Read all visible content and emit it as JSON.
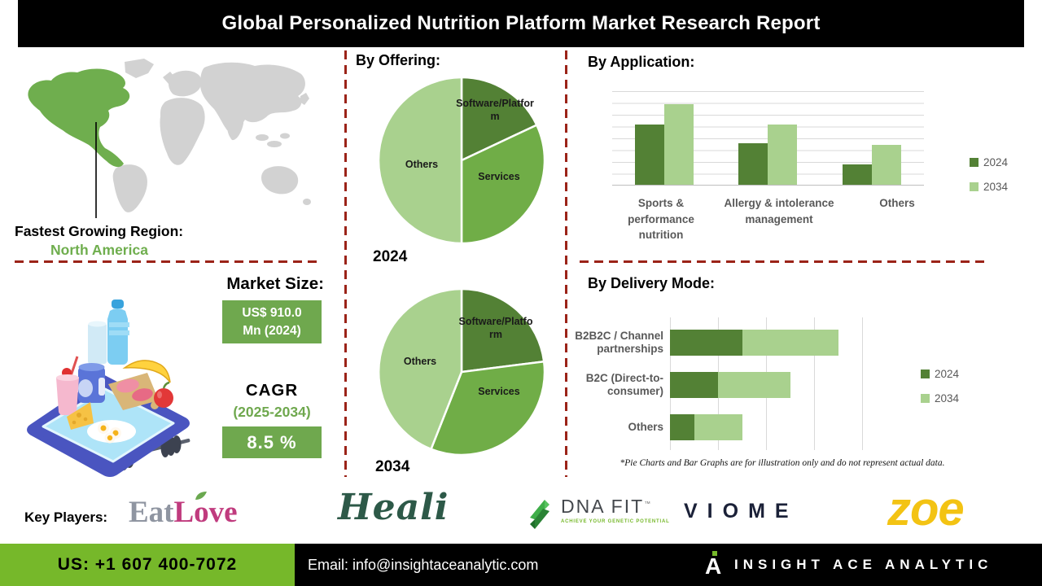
{
  "title": "Global Personalized Nutrition Platform Market Research Report",
  "region": {
    "label": "Fastest Growing Region:",
    "value": "North America"
  },
  "market": {
    "size_label": "Market Size:",
    "size_line1": "US$ 910.0",
    "size_line2": "Mn (2024)",
    "cagr_label": "CAGR",
    "cagr_period": "(2025-2034)",
    "cagr_value": "8.5 %"
  },
  "offering": {
    "heading": "By Offering:",
    "year1": "2024",
    "year2": "2034",
    "slice_labels": [
      "Software/Platform",
      "Services",
      "Others"
    ]
  },
  "application": {
    "heading": "By Application:"
  },
  "delivery": {
    "heading": "By Delivery Mode:"
  },
  "disclaimer": "*Pie Charts and Bar Graphs are for illustration only and do not represent actual data.",
  "key_players": {
    "label": "Key Players:",
    "eatlove_part1": "Eat",
    "eatlove_part2": "Love",
    "heali": "Heali",
    "dnafit_name": "DNA FIT",
    "dnafit_tm": "™",
    "dnafit_tagline": "ACHIEVE YOUR GENETIC POTENTIAL",
    "viome": "VIOME",
    "zoe": "zoe"
  },
  "footer": {
    "phone": "US: +1 607 400-7072",
    "email": "Email: info@insightaceanalytic.com",
    "brand_initial": "A",
    "brand": "INSIGHT ACE ANALYTIC"
  },
  "colors": {
    "dark_green": "#538135",
    "mid_green": "#6fa84e",
    "light_green": "#a9d18e",
    "accent_red": "#9b2318",
    "footer_green": "#76b82a",
    "map_green": "#6fae4e",
    "map_gray": "#d2d2d2"
  },
  "chart_data": [
    {
      "type": "pie",
      "title": "By Offering — 2024",
      "labels": [
        "Software/Platform",
        "Services",
        "Others"
      ],
      "values": [
        18,
        32,
        50
      ],
      "colors": [
        "#538135",
        "#70ad47",
        "#a9d18e"
      ],
      "note": "illustrative only"
    },
    {
      "type": "pie",
      "title": "By Offering — 2034",
      "labels": [
        "Software/Platform",
        "Services",
        "Others"
      ],
      "values": [
        23,
        33,
        44
      ],
      "colors": [
        "#538135",
        "#70ad47",
        "#a9d18e"
      ],
      "note": "illustrative only"
    },
    {
      "type": "bar",
      "title": "By Application",
      "categories": [
        "Sports & performance nutrition",
        "Allergy & intolerance management",
        "Others"
      ],
      "series": [
        {
          "name": "2024",
          "color": "#538135",
          "values": [
            6.4,
            4.4,
            2.2
          ]
        },
        {
          "name": "2034",
          "color": "#a9d18e",
          "values": [
            8.6,
            6.4,
            4.3
          ]
        }
      ],
      "ylim": [
        0,
        10
      ],
      "grid": true,
      "legend_position": "right",
      "note": "illustrative only"
    },
    {
      "type": "bar",
      "orientation": "horizontal",
      "stacked": true,
      "title": "By Delivery Mode",
      "categories": [
        "B2B2C / Channel partnerships",
        "B2C (Direct-to-consumer)",
        "Others"
      ],
      "series": [
        {
          "name": "2024",
          "color": "#538135",
          "values": [
            1.5,
            1.0,
            0.5
          ]
        },
        {
          "name": "2034",
          "color": "#a9d18e",
          "values": [
            2.0,
            1.5,
            1.0
          ]
        }
      ],
      "xlim": [
        0,
        4.5
      ],
      "grid": true,
      "legend_position": "right",
      "note": "illustrative only"
    }
  ]
}
